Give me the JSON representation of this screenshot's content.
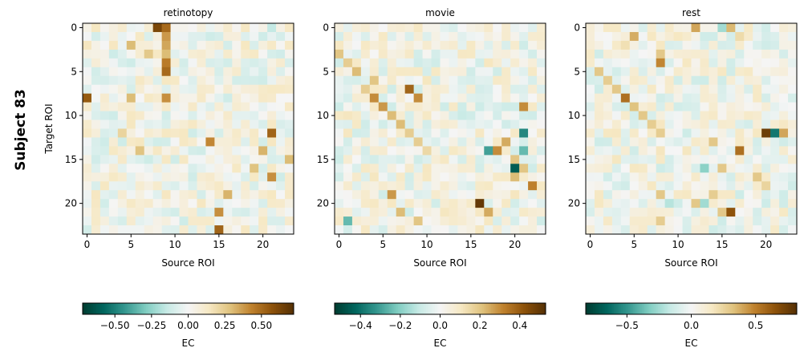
{
  "figure": {
    "row_label": "Subject 83"
  },
  "chart_data": [
    {
      "type": "heatmap",
      "title": "retinotopy",
      "xlabel": "Source ROI",
      "ylabel": "Target ROI",
      "size": 24,
      "x_ticks": [
        0,
        5,
        10,
        15,
        20
      ],
      "y_ticks": [
        0,
        5,
        10,
        15,
        20
      ],
      "colormap": "BrBG_r",
      "vmin": -0.72,
      "vmax": 0.72,
      "colorbar": {
        "label": "EC",
        "ticks": [
          -0.5,
          -0.25,
          0,
          0.25,
          0.5
        ],
        "tick_labels": [
          "−0.50",
          "−0.25",
          "0.00",
          "0.25",
          "0.50"
        ]
      },
      "strong_cells": [
        [
          0,
          8,
          0.62
        ],
        [
          0,
          9,
          0.5
        ],
        [
          1,
          9,
          0.38
        ],
        [
          2,
          5,
          0.3
        ],
        [
          2,
          9,
          0.35
        ],
        [
          3,
          7,
          0.26
        ],
        [
          3,
          9,
          0.3
        ],
        [
          4,
          9,
          0.45
        ],
        [
          5,
          9,
          0.5
        ],
        [
          8,
          0,
          0.55
        ],
        [
          8,
          5,
          0.3
        ],
        [
          8,
          9,
          0.4
        ],
        [
          12,
          21,
          0.52
        ],
        [
          12,
          4,
          0.22
        ],
        [
          13,
          14,
          0.42
        ],
        [
          14,
          6,
          0.28
        ],
        [
          14,
          20,
          0.32
        ],
        [
          15,
          23,
          0.3
        ],
        [
          16,
          19,
          0.28
        ],
        [
          17,
          21,
          0.4
        ],
        [
          19,
          16,
          0.32
        ],
        [
          21,
          15,
          0.4
        ],
        [
          23,
          15,
          0.52
        ],
        [
          2,
          0,
          0.15
        ],
        [
          1,
          14,
          -0.12
        ],
        [
          0,
          21,
          -0.15
        ]
      ]
    },
    {
      "type": "heatmap",
      "title": "movie",
      "xlabel": "Source ROI",
      "ylabel": "",
      "size": 24,
      "x_ticks": [
        0,
        5,
        10,
        15,
        20
      ],
      "y_ticks": [
        0,
        5,
        10,
        15,
        20
      ],
      "colormap": "BrBG_r",
      "vmin": -0.53,
      "vmax": 0.53,
      "colorbar": {
        "label": "EC",
        "ticks": [
          -0.4,
          -0.2,
          0,
          0.2,
          0.4
        ],
        "tick_labels": [
          "−0.4",
          "−0.2",
          "0.0",
          "0.2",
          "0.4"
        ]
      },
      "strong_cells": [
        [
          3,
          0,
          0.2
        ],
        [
          4,
          1,
          0.18
        ],
        [
          5,
          2,
          0.22
        ],
        [
          7,
          8,
          0.38
        ],
        [
          8,
          9,
          0.3
        ],
        [
          6,
          4,
          0.2
        ],
        [
          7,
          3,
          0.18
        ],
        [
          8,
          4,
          0.3
        ],
        [
          9,
          5,
          0.28
        ],
        [
          10,
          6,
          0.22
        ],
        [
          11,
          7,
          0.22
        ],
        [
          12,
          8,
          0.18
        ],
        [
          13,
          9,
          0.18
        ],
        [
          14,
          10,
          0.15
        ],
        [
          9,
          21,
          0.3
        ],
        [
          12,
          21,
          -0.35
        ],
        [
          13,
          19,
          0.25
        ],
        [
          14,
          17,
          -0.3
        ],
        [
          14,
          18,
          0.3
        ],
        [
          14,
          21,
          -0.25
        ],
        [
          15,
          20,
          0.2
        ],
        [
          16,
          20,
          -0.45
        ],
        [
          16,
          21,
          0.2
        ],
        [
          17,
          20,
          0.22
        ],
        [
          18,
          22,
          0.32
        ],
        [
          19,
          6,
          0.28
        ],
        [
          20,
          16,
          0.5
        ],
        [
          21,
          7,
          0.22
        ],
        [
          21,
          17,
          0.25
        ],
        [
          22,
          1,
          -0.25
        ],
        [
          22,
          9,
          0.2
        ],
        [
          10,
          14,
          -0.1
        ]
      ]
    },
    {
      "type": "heatmap",
      "title": "rest",
      "xlabel": "Source ROI",
      "ylabel": "",
      "size": 24,
      "x_ticks": [
        0,
        5,
        10,
        15,
        20
      ],
      "y_ticks": [
        0,
        5,
        10,
        15,
        20
      ],
      "colormap": "BrBG_r",
      "vmin": -0.82,
      "vmax": 0.82,
      "colorbar": {
        "label": "EC",
        "ticks": [
          -0.5,
          0,
          0.5
        ],
        "tick_labels": [
          "−0.5",
          "0.0",
          "0.5"
        ]
      },
      "strong_cells": [
        [
          0,
          12,
          0.4
        ],
        [
          0,
          16,
          0.35
        ],
        [
          0,
          15,
          -0.25
        ],
        [
          1,
          5,
          0.38
        ],
        [
          1,
          17,
          0.22
        ],
        [
          2,
          4,
          0.2
        ],
        [
          3,
          8,
          0.3
        ],
        [
          4,
          8,
          0.48
        ],
        [
          5,
          1,
          0.3
        ],
        [
          6,
          2,
          0.28
        ],
        [
          7,
          3,
          0.3
        ],
        [
          8,
          4,
          0.55
        ],
        [
          9,
          5,
          0.32
        ],
        [
          10,
          6,
          0.3
        ],
        [
          11,
          7,
          0.28
        ],
        [
          12,
          8,
          0.28
        ],
        [
          12,
          20,
          0.75
        ],
        [
          12,
          21,
          -0.6
        ],
        [
          12,
          22,
          0.4
        ],
        [
          13,
          14,
          0.3
        ],
        [
          14,
          17,
          0.55
        ],
        [
          16,
          13,
          -0.3
        ],
        [
          16,
          15,
          0.3
        ],
        [
          17,
          19,
          0.3
        ],
        [
          18,
          20,
          0.25
        ],
        [
          19,
          14,
          0.28
        ],
        [
          20,
          12,
          0.3
        ],
        [
          20,
          13,
          -0.25
        ],
        [
          21,
          16,
          0.65
        ],
        [
          21,
          15,
          0.3
        ],
        [
          22,
          8,
          0.28
        ],
        [
          19,
          8,
          0.3
        ],
        [
          20,
          9,
          -0.2
        ]
      ]
    }
  ]
}
